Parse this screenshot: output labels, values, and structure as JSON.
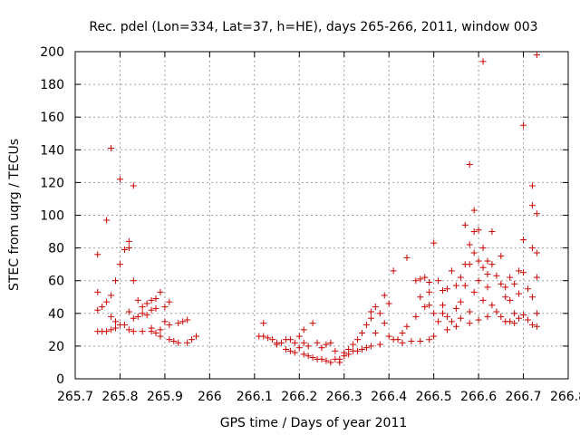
{
  "chart_data": {
    "type": "scatter",
    "title": "Rec. pdel (Lon=334, Lat=37, h=HE), days 265-266, 2011, window 003",
    "xlabel": "GPS time / Days of year 2011",
    "ylabel": "STEC from uqrg / TECUs",
    "xlim": [
      265.7,
      266.8
    ],
    "ylim": [
      0,
      200
    ],
    "x_ticks": [
      265.7,
      265.8,
      265.9,
      266.0,
      266.1,
      266.2,
      266.3,
      266.4,
      266.5,
      266.6,
      266.7,
      266.8
    ],
    "x_tick_labels": [
      "265.7",
      "265.8",
      "265.9",
      "266",
      "266.1",
      "266.2",
      "266.3",
      "266.4",
      "266.5",
      "266.6",
      "266.7",
      "266.8"
    ],
    "y_ticks": [
      0,
      20,
      40,
      60,
      80,
      100,
      120,
      140,
      160,
      180,
      200
    ],
    "y_tick_labels": [
      "0",
      "20",
      "40",
      "60",
      "80",
      "100",
      "120",
      "140",
      "160",
      "180",
      "200"
    ],
    "grid": true,
    "marker": "+",
    "marker_color": "#cc0000",
    "series": [
      {
        "name": "STEC",
        "points": [
          [
            265.75,
            76
          ],
          [
            265.75,
            53
          ],
          [
            265.75,
            42
          ],
          [
            265.75,
            29
          ],
          [
            265.76,
            44
          ],
          [
            265.76,
            29
          ],
          [
            265.77,
            97
          ],
          [
            265.77,
            47
          ],
          [
            265.77,
            29
          ],
          [
            265.78,
            141
          ],
          [
            265.78,
            51
          ],
          [
            265.78,
            38
          ],
          [
            265.78,
            30
          ],
          [
            265.79,
            60
          ],
          [
            265.79,
            35
          ],
          [
            265.79,
            31
          ],
          [
            265.8,
            122
          ],
          [
            265.8,
            70
          ],
          [
            265.8,
            33
          ],
          [
            265.81,
            79
          ],
          [
            265.81,
            33
          ],
          [
            265.82,
            84
          ],
          [
            265.82,
            80
          ],
          [
            265.82,
            41
          ],
          [
            265.82,
            30
          ],
          [
            265.83,
            118
          ],
          [
            265.83,
            60
          ],
          [
            265.83,
            37
          ],
          [
            265.83,
            29
          ],
          [
            265.84,
            48
          ],
          [
            265.84,
            38
          ],
          [
            265.85,
            44
          ],
          [
            265.85,
            40
          ],
          [
            265.85,
            29
          ],
          [
            265.86,
            46
          ],
          [
            265.86,
            39
          ],
          [
            265.87,
            48
          ],
          [
            265.87,
            42
          ],
          [
            265.87,
            31
          ],
          [
            265.87,
            29
          ],
          [
            265.88,
            49
          ],
          [
            265.88,
            43
          ],
          [
            265.88,
            28
          ],
          [
            265.89,
            53
          ],
          [
            265.89,
            30
          ],
          [
            265.89,
            26
          ],
          [
            265.9,
            44
          ],
          [
            265.9,
            35
          ],
          [
            265.91,
            47
          ],
          [
            265.91,
            24
          ],
          [
            265.91,
            33
          ],
          [
            265.92,
            23
          ],
          [
            265.93,
            34
          ],
          [
            265.93,
            22
          ],
          [
            265.94,
            35
          ],
          [
            265.95,
            36
          ],
          [
            265.95,
            22
          ],
          [
            265.96,
            24
          ],
          [
            265.97,
            26
          ],
          [
            266.11,
            26
          ],
          [
            266.12,
            34
          ],
          [
            266.12,
            26
          ],
          [
            266.13,
            25
          ],
          [
            266.14,
            24
          ],
          [
            266.15,
            22
          ],
          [
            266.15,
            21
          ],
          [
            266.16,
            22
          ],
          [
            266.17,
            24
          ],
          [
            266.17,
            18
          ],
          [
            266.18,
            17
          ],
          [
            266.18,
            24
          ],
          [
            266.19,
            22
          ],
          [
            266.19,
            16
          ],
          [
            266.2,
            26
          ],
          [
            266.2,
            19
          ],
          [
            266.21,
            22
          ],
          [
            266.21,
            15
          ],
          [
            266.21,
            30
          ],
          [
            266.22,
            14
          ],
          [
            266.22,
            20
          ],
          [
            266.23,
            34
          ],
          [
            266.23,
            13
          ],
          [
            266.24,
            22
          ],
          [
            266.24,
            12
          ],
          [
            266.25,
            19
          ],
          [
            266.25,
            12
          ],
          [
            266.26,
            21
          ],
          [
            266.26,
            11
          ],
          [
            266.27,
            22
          ],
          [
            266.27,
            10
          ],
          [
            266.28,
            17
          ],
          [
            266.28,
            12
          ],
          [
            266.29,
            10
          ],
          [
            266.29,
            12
          ],
          [
            266.3,
            14
          ],
          [
            266.3,
            16
          ],
          [
            266.31,
            15
          ],
          [
            266.31,
            18
          ],
          [
            266.32,
            17
          ],
          [
            266.32,
            21
          ],
          [
            266.33,
            24
          ],
          [
            266.33,
            17
          ],
          [
            266.34,
            28
          ],
          [
            266.34,
            18
          ],
          [
            266.35,
            33
          ],
          [
            266.35,
            19
          ],
          [
            266.36,
            37
          ],
          [
            266.36,
            41
          ],
          [
            266.36,
            20
          ],
          [
            266.37,
            44
          ],
          [
            266.37,
            28
          ],
          [
            266.38,
            21
          ],
          [
            266.38,
            40
          ],
          [
            266.39,
            51
          ],
          [
            266.39,
            34
          ],
          [
            266.4,
            46
          ],
          [
            266.4,
            26
          ],
          [
            266.41,
            66
          ],
          [
            266.41,
            24
          ],
          [
            266.42,
            24
          ],
          [
            266.43,
            28
          ],
          [
            266.43,
            22
          ],
          [
            266.44,
            74
          ],
          [
            266.44,
            32
          ],
          [
            266.45,
            23
          ],
          [
            266.46,
            60
          ],
          [
            266.46,
            38
          ],
          [
            266.47,
            61
          ],
          [
            266.47,
            50
          ],
          [
            266.47,
            23
          ],
          [
            266.48,
            44
          ],
          [
            266.48,
            62
          ],
          [
            266.49,
            59
          ],
          [
            266.49,
            53
          ],
          [
            266.49,
            45
          ],
          [
            266.49,
            24
          ],
          [
            266.5,
            83
          ],
          [
            266.5,
            40
          ],
          [
            266.5,
            26
          ],
          [
            266.51,
            60
          ],
          [
            266.51,
            35
          ],
          [
            266.52,
            54
          ],
          [
            266.52,
            45
          ],
          [
            266.52,
            40
          ],
          [
            266.53,
            55
          ],
          [
            266.53,
            38
          ],
          [
            266.53,
            30
          ],
          [
            266.54,
            66
          ],
          [
            266.54,
            35
          ],
          [
            266.55,
            57
          ],
          [
            266.55,
            43
          ],
          [
            266.55,
            32
          ],
          [
            266.56,
            62
          ],
          [
            266.56,
            47
          ],
          [
            266.56,
            37
          ],
          [
            266.57,
            94
          ],
          [
            266.57,
            70
          ],
          [
            266.57,
            57
          ],
          [
            266.58,
            131
          ],
          [
            266.58,
            82
          ],
          [
            266.58,
            70
          ],
          [
            266.58,
            41
          ],
          [
            266.58,
            34
          ],
          [
            266.59,
            103
          ],
          [
            266.59,
            90
          ],
          [
            266.59,
            77
          ],
          [
            266.59,
            53
          ],
          [
            266.6,
            91
          ],
          [
            266.6,
            72
          ],
          [
            266.6,
            60
          ],
          [
            266.6,
            36
          ],
          [
            266.61,
            194
          ],
          [
            266.61,
            80
          ],
          [
            266.61,
            68
          ],
          [
            266.61,
            48
          ],
          [
            266.62,
            72
          ],
          [
            266.62,
            64
          ],
          [
            266.62,
            56
          ],
          [
            266.62,
            38
          ],
          [
            266.63,
            90
          ],
          [
            266.63,
            70
          ],
          [
            266.63,
            45
          ],
          [
            266.64,
            63
          ],
          [
            266.64,
            41
          ],
          [
            266.65,
            75
          ],
          [
            266.65,
            58
          ],
          [
            266.65,
            38
          ],
          [
            266.66,
            56
          ],
          [
            266.66,
            50
          ],
          [
            266.66,
            35
          ],
          [
            266.67,
            62
          ],
          [
            266.67,
            48
          ],
          [
            266.67,
            35
          ],
          [
            266.68,
            58
          ],
          [
            266.68,
            40
          ],
          [
            266.68,
            34
          ],
          [
            266.69,
            66
          ],
          [
            266.69,
            52
          ],
          [
            266.69,
            37
          ],
          [
            266.7,
            155
          ],
          [
            266.7,
            85
          ],
          [
            266.7,
            65
          ],
          [
            266.7,
            39
          ],
          [
            266.71,
            55
          ],
          [
            266.71,
            36
          ],
          [
            266.72,
            118
          ],
          [
            266.72,
            106
          ],
          [
            266.72,
            80
          ],
          [
            266.72,
            50
          ],
          [
            266.72,
            33
          ],
          [
            266.73,
            198
          ],
          [
            266.73,
            101
          ],
          [
            266.73,
            77
          ],
          [
            266.73,
            62
          ],
          [
            266.73,
            40
          ],
          [
            266.73,
            32
          ]
        ]
      }
    ]
  }
}
